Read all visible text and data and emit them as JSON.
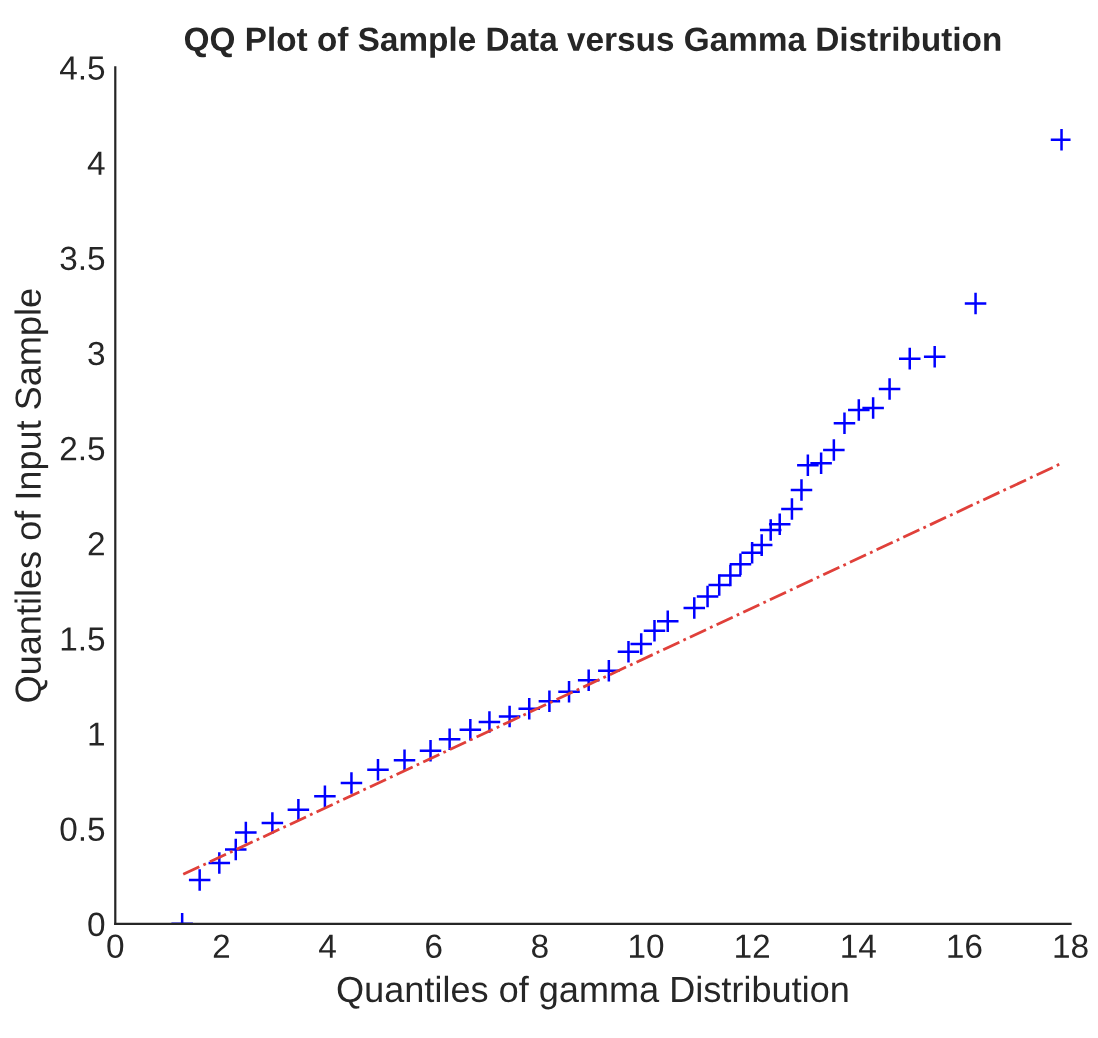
{
  "chart_data": {
    "type": "scatter",
    "title": "QQ Plot of Sample Data versus Gamma Distribution",
    "xlabel": "Quantiles of gamma Distribution",
    "ylabel": "Quantiles of Input Sample",
    "xlim": [
      0,
      18
    ],
    "xticks": [
      0,
      2,
      4,
      6,
      8,
      10,
      12,
      14,
      16,
      18
    ],
    "ylim": [
      0,
      4.5
    ],
    "yticks": [
      0,
      0.5,
      1,
      1.5,
      2,
      2.5,
      3,
      3.5,
      4,
      4.5
    ],
    "grid": false,
    "legend": false,
    "series": [
      {
        "type": "line",
        "color": "#e0403a",
        "line_style": "dashed",
        "marker": "none",
        "x": [
          1.28,
          17.83
        ],
        "values": [
          0.26,
          2.42
        ]
      },
      {
        "color": "#0000ff",
        "marker": "cross",
        "x": [
          1.26,
          1.59,
          1.96,
          2.27,
          2.46,
          2.96,
          3.45,
          3.95,
          4.45,
          4.95,
          5.45,
          5.94,
          6.3,
          6.69,
          7.05,
          7.43,
          7.8,
          8.18,
          8.55,
          8.92,
          9.3,
          9.67,
          9.91,
          10.16,
          10.41,
          10.91,
          11.16,
          11.38,
          11.59,
          11.78,
          12.0,
          12.18,
          12.35,
          12.52,
          12.75,
          12.93,
          13.05,
          13.3,
          13.54,
          13.74,
          14.01,
          14.28,
          14.59,
          14.97,
          15.44,
          16.21,
          17.83
        ],
        "values": [
          0.0,
          0.23,
          0.32,
          0.39,
          0.48,
          0.53,
          0.6,
          0.67,
          0.74,
          0.81,
          0.86,
          0.91,
          0.97,
          1.02,
          1.06,
          1.09,
          1.13,
          1.17,
          1.22,
          1.28,
          1.33,
          1.43,
          1.47,
          1.54,
          1.59,
          1.66,
          1.72,
          1.78,
          1.83,
          1.89,
          1.95,
          1.99,
          2.07,
          2.1,
          2.18,
          2.28,
          2.41,
          2.42,
          2.49,
          2.63,
          2.7,
          2.71,
          2.81,
          2.97,
          2.98,
          3.26,
          4.12
        ]
      }
    ]
  }
}
